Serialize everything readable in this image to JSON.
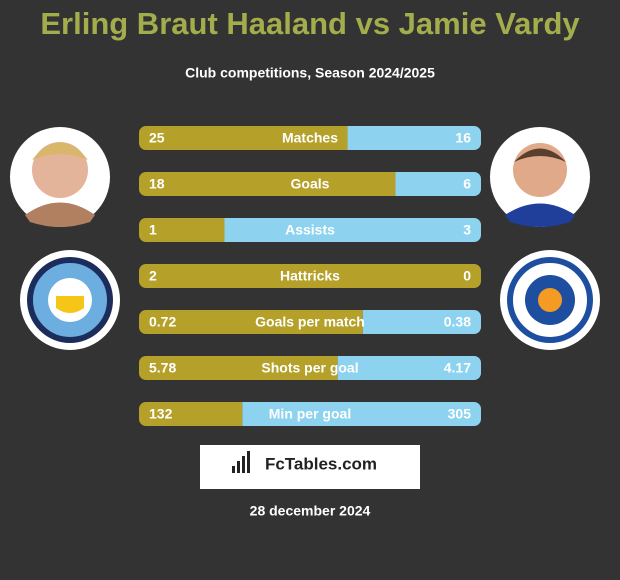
{
  "title": "Erling Braut Haaland vs Jamie Vardy",
  "subtitle": "Club competitions, Season 2024/2025",
  "left_color": "#b5a12a",
  "right_color": "#8dd3ef",
  "stats": [
    {
      "label": "Matches",
      "left": 25,
      "right": 16
    },
    {
      "label": "Goals",
      "left": 18,
      "right": 6
    },
    {
      "label": "Assists",
      "left": 1,
      "right": 3
    },
    {
      "label": "Hattricks",
      "left": 2,
      "right": 0
    },
    {
      "label": "Goals per match",
      "left": 0.72,
      "right": 0.38
    },
    {
      "label": "Shots per goal",
      "left": 5.78,
      "right": 4.17
    },
    {
      "label": "Min per goal",
      "left": 132,
      "right": 305
    }
  ],
  "brand": "FcTables.com",
  "date": "28 december 2024"
}
